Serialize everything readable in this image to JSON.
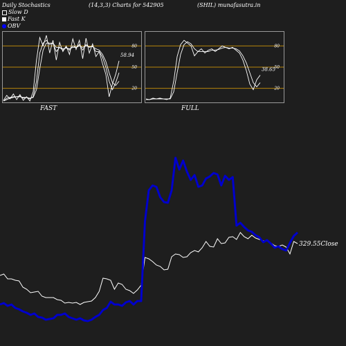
{
  "header": {
    "title": "Daily Stochastics",
    "params": "(14,3,3) Charts for 542905",
    "site": "(SHIL) munafasutra.in"
  },
  "legend": [
    {
      "label": "Slow  D",
      "color": "#ffffff",
      "shape": "square-outline"
    },
    {
      "label": "Fast K",
      "color": "#ffffff",
      "shape": "square"
    },
    {
      "label": "OBV",
      "color": "#0000ff",
      "shape": "circle"
    }
  ],
  "colors": {
    "background": "#1e1e1e",
    "level_line": "#b8860b",
    "stoch_line": "#ffffff",
    "obv": "#0000cc",
    "price": "#ffffff",
    "frame": "#9a9a9a"
  },
  "chart_data": [
    {
      "type": "line",
      "panel": "FAST",
      "title": "FAST",
      "ylim": [
        0,
        100
      ],
      "levels": [
        20,
        50,
        80
      ],
      "level_labels": [
        "20",
        "50",
        "80"
      ],
      "value_label": "58.94",
      "series": [
        {
          "values": [
            3,
            10,
            5,
            12,
            4,
            11,
            3,
            8,
            2,
            15,
            60,
            92,
            80,
            95,
            70,
            88,
            60,
            85,
            72,
            80,
            68,
            90,
            75,
            88,
            62,
            91,
            70,
            83,
            65,
            72,
            55,
            40,
            8,
            26,
            40,
            58.94
          ]
        },
        {
          "values": [
            2,
            6,
            7,
            8,
            8,
            9,
            6,
            7,
            5,
            8,
            30,
            70,
            84,
            88,
            82,
            84,
            72,
            78,
            74,
            78,
            74,
            80,
            78,
            82,
            74,
            82,
            78,
            80,
            72,
            72,
            64,
            50,
            30,
            18,
            28,
            42
          ]
        },
        {
          "values": [
            2,
            4,
            6,
            7,
            8,
            8,
            7,
            7,
            6,
            7,
            18,
            48,
            74,
            84,
            84,
            84,
            78,
            78,
            76,
            77,
            76,
            78,
            78,
            80,
            78,
            80,
            79,
            79,
            76,
            74,
            68,
            58,
            42,
            28,
            24,
            30
          ]
        }
      ]
    },
    {
      "type": "line",
      "panel": "FULL",
      "title": "FULL",
      "ylim": [
        0,
        100
      ],
      "levels": [
        20,
        50,
        80
      ],
      "level_labels": [
        "20",
        "50",
        "80"
      ],
      "value_label": "38.65",
      "series": [
        {
          "values": [
            5,
            4,
            6,
            5,
            6,
            5,
            4,
            6,
            30,
            65,
            82,
            88,
            84,
            80,
            66,
            72,
            76,
            70,
            74,
            76,
            72,
            76,
            80,
            78,
            76,
            78,
            74,
            70,
            60,
            45,
            26,
            18,
            32,
            38.65
          ]
        },
        {
          "values": [
            4,
            4,
            5,
            5,
            5,
            5,
            5,
            5,
            15,
            42,
            68,
            82,
            86,
            83,
            76,
            72,
            72,
            72,
            72,
            74,
            74,
            75,
            77,
            78,
            77,
            77,
            76,
            73,
            66,
            56,
            42,
            28,
            22,
            28
          ]
        }
      ]
    },
    {
      "type": "line",
      "panel": "price-obv",
      "value_label": "329.55",
      "value_label_suffix": "Close",
      "series": [
        {
          "key": "obv",
          "values": [
            440,
            438,
            442,
            440,
            445,
            447,
            450,
            452,
            455,
            453,
            458,
            459,
            462,
            461,
            460,
            455,
            455,
            453,
            458,
            460,
            462,
            460,
            463,
            464,
            462,
            458,
            455,
            448,
            445,
            436,
            440,
            440,
            442,
            437,
            435,
            440,
            435,
            435,
            320,
            275,
            268,
            270,
            285,
            292,
            293,
            275,
            228,
            245,
            232,
            248,
            260,
            253,
            270,
            268,
            258,
            255,
            250,
            252,
            268,
            254,
            260,
            256,
            326,
            322,
            328,
            333,
            335,
            340,
            343,
            350,
            347,
            352,
            358,
            356,
            360,
            362,
            351,
            341,
            336
          ]
        },
        {
          "key": "price",
          "values": [
            398,
            396,
            403,
            403,
            405,
            406,
            415,
            418,
            423,
            422,
            421,
            428,
            430,
            430,
            430,
            433,
            434,
            438,
            437,
            438,
            437,
            440,
            437,
            436,
            435,
            430,
            421,
            402,
            403,
            405,
            418,
            409,
            411,
            418,
            420,
            424,
            419,
            412,
            372,
            374,
            378,
            383,
            385,
            390,
            389,
            371,
            367,
            368,
            372,
            371,
            365,
            362,
            364,
            358,
            349,
            356,
            357,
            345,
            352,
            351,
            343,
            342,
            346,
            336,
            342,
            345,
            340,
            344,
            346,
            348,
            348,
            351,
            355,
            356,
            354,
            357,
            367,
            349,
            352
          ]
        }
      ]
    }
  ],
  "labels": {
    "fast": "FAST",
    "full": "FULL"
  }
}
